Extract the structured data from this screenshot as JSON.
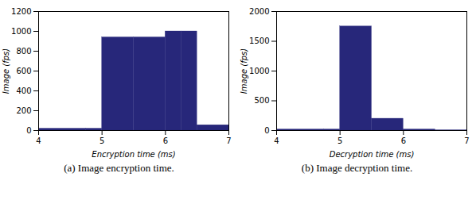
{
  "chart_data": [
    {
      "type": "histogram",
      "title": "(a) Image encryption time.",
      "bins": [
        4.0,
        4.75,
        5.0,
        5.5,
        6.0,
        6.25,
        6.5,
        7.0
      ],
      "values": [
        20,
        20,
        940,
        940,
        1000,
        1000,
        55
      ],
      "xlim": [
        4,
        7
      ],
      "ylim": [
        0,
        1200
      ],
      "xticks": [
        4,
        5,
        6,
        7
      ],
      "yticks": [
        0,
        200,
        400,
        600,
        800,
        1000,
        1200
      ],
      "xlabel": "Encryption time (ms)",
      "ylabel": "Image (fps)",
      "color": "#27277a"
    },
    {
      "type": "histogram",
      "title": "(b) Image decryption time.",
      "bins": [
        4.0,
        4.75,
        5.0,
        5.5,
        6.0,
        6.5,
        7.0
      ],
      "values": [
        20,
        20,
        1750,
        200,
        20,
        5
      ],
      "xlim": [
        4,
        7
      ],
      "ylim": [
        0,
        2000
      ],
      "xticks": [
        4,
        5,
        6,
        7
      ],
      "yticks": [
        0,
        500,
        1000,
        1500,
        2000
      ],
      "xlabel": "Decryption time (ms)",
      "ylabel": "Image (fps)",
      "color": "#27277a"
    }
  ]
}
